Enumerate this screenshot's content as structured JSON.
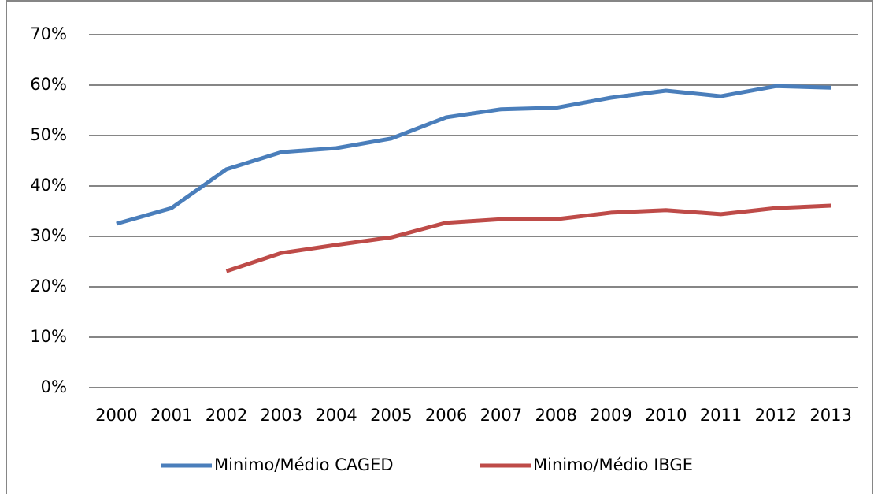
{
  "chart_data": {
    "type": "line",
    "categories": [
      "2000",
      "2001",
      "2002",
      "2003",
      "2004",
      "2005",
      "2006",
      "2007",
      "2008",
      "2009",
      "2010",
      "2011",
      "2012",
      "2013"
    ],
    "series": [
      {
        "name": "Minimo/Médio CAGED",
        "color": "#4a7ebb",
        "values": [
          32.5,
          35.6,
          43.3,
          46.7,
          47.5,
          49.4,
          53.6,
          55.2,
          55.5,
          57.5,
          58.9,
          57.8,
          59.8,
          59.5
        ]
      },
      {
        "name": "Minimo/Médio IBGE",
        "color": "#be4b48",
        "values": [
          null,
          null,
          23.1,
          26.7,
          28.3,
          29.8,
          32.7,
          33.4,
          33.4,
          34.7,
          35.2,
          34.4,
          35.6,
          36.1
        ]
      }
    ],
    "ylim": [
      0,
      70
    ],
    "yticks": [
      {
        "value": 0,
        "label": "0%"
      },
      {
        "value": 10,
        "label": "10%"
      },
      {
        "value": 20,
        "label": "20%"
      },
      {
        "value": 30,
        "label": "30%"
      },
      {
        "value": 40,
        "label": "40%"
      },
      {
        "value": 50,
        "label": "50%"
      },
      {
        "value": 60,
        "label": "60%"
      },
      {
        "value": 70,
        "label": "70%"
      }
    ],
    "grid": true,
    "legend": "bottom"
  }
}
